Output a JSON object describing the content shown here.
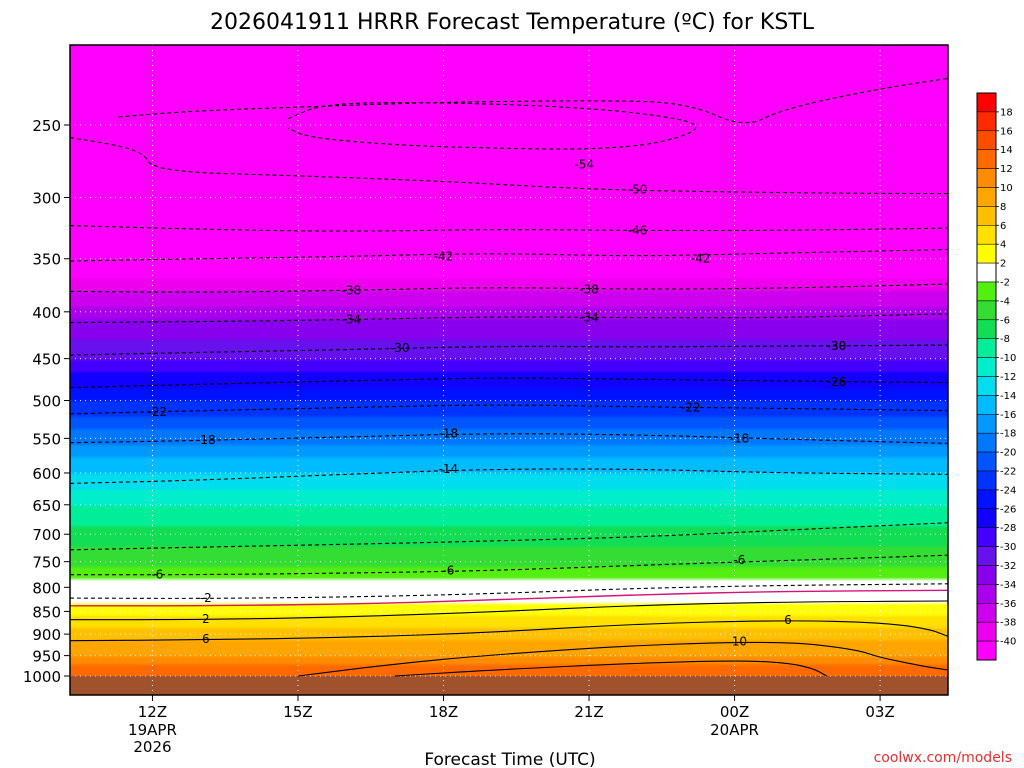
{
  "title": "2026041911 HRRR Forecast Temperature (ºC) for KSTL",
  "credit": "coolwx.com/models",
  "colors": {
    "ground": "#a0522d",
    "background": "#ffffff",
    "pos_contour": "#000000",
    "neg_contour": "#000000",
    "freezing_contour": "#d4147a"
  },
  "chart_data": {
    "type": "heatmap",
    "title": "2026041911 HRRR Forecast Temperature (ºC) for KSTL",
    "xlabel": "Forecast Time (UTC)",
    "ylabel": "",
    "y_scale": "log-pressure",
    "y_range_hpa": [
      1000,
      200
    ],
    "x_range_hours": [
      -1.7,
      16.4
    ],
    "x_ticks": [
      {
        "label": "12Z",
        "sub": [
          "19APR",
          "2026"
        ],
        "hour": 0
      },
      {
        "label": "15Z",
        "sub": [],
        "hour": 3
      },
      {
        "label": "18Z",
        "sub": [],
        "hour": 6
      },
      {
        "label": "21Z",
        "sub": [],
        "hour": 9
      },
      {
        "label": "00Z",
        "sub": [
          "20APR"
        ],
        "hour": 12
      },
      {
        "label": "03Z",
        "sub": [],
        "hour": 15
      }
    ],
    "y_ticks": [
      250,
      300,
      350,
      400,
      450,
      500,
      550,
      600,
      650,
      700,
      750,
      800,
      850,
      900,
      950,
      1000
    ],
    "grid": true,
    "colorbar": {
      "levels": [
        18,
        16,
        14,
        12,
        10,
        8,
        6,
        4,
        2,
        -2,
        -4,
        -6,
        -8,
        -10,
        -12,
        -14,
        -16,
        -18,
        -20,
        -22,
        -24,
        -26,
        -28,
        -30,
        -32,
        -34,
        -36,
        -38,
        -40
      ],
      "colors": [
        "#ff0000",
        "#ff2a00",
        "#ff4d00",
        "#ff6a00",
        "#ff8c00",
        "#ffa500",
        "#ffc000",
        "#ffe000",
        "#ffff00",
        "#ffffff",
        "#55ee11",
        "#33dd33",
        "#11dd55",
        "#00ee99",
        "#00eecc",
        "#00ddee",
        "#00bbff",
        "#0099ff",
        "#0077ff",
        "#0055ff",
        "#0033ff",
        "#0011ff",
        "#1100ff",
        "#4400ff",
        "#6611ee",
        "#8800ee",
        "#aa00ee",
        "#cc00ee",
        "#ee00ee",
        "#ff00ff"
      ]
    },
    "temperature_profile": [
      {
        "p": 200,
        "t": -58
      },
      {
        "p": 250,
        "t": -56
      },
      {
        "p": 300,
        "t": -50
      },
      {
        "p": 350,
        "t": -43
      },
      {
        "p": 400,
        "t": -35
      },
      {
        "p": 450,
        "t": -30
      },
      {
        "p": 500,
        "t": -24
      },
      {
        "p": 550,
        "t": -19
      },
      {
        "p": 600,
        "t": -14
      },
      {
        "p": 650,
        "t": -10
      },
      {
        "p": 700,
        "t": -7
      },
      {
        "p": 750,
        "t": -5
      },
      {
        "p": 800,
        "t": -1
      },
      {
        "p": 850,
        "t": 3
      },
      {
        "p": 900,
        "t": 7
      },
      {
        "p": 950,
        "t": 10
      },
      {
        "p": 1000,
        "t": 14
      }
    ],
    "contours": [
      {
        "value": -54,
        "style": "dashed",
        "points": [
          [
            -0.7,
            245
          ],
          [
            0.5,
            242
          ],
          [
            2,
            240
          ],
          [
            4,
            238
          ],
          [
            6,
            236
          ],
          [
            9,
            235
          ],
          [
            11,
            236
          ],
          [
            12.2,
            252
          ],
          [
            13,
            240
          ],
          [
            15,
            228
          ],
          [
            17,
            220
          ]
        ]
      },
      {
        "value": -54,
        "style": "dashed",
        "points": [
          [
            2.8,
            246
          ],
          [
            3.5,
            237
          ],
          [
            5.5,
            236
          ],
          [
            8,
            238
          ],
          [
            10,
            242
          ],
          [
            11.5,
            250
          ],
          [
            10.5,
            262
          ],
          [
            9,
            266
          ],
          [
            7,
            265
          ],
          [
            5,
            263
          ],
          [
            3.2,
            258
          ],
          [
            2.8,
            252
          ]
        ]
      },
      {
        "value": -50,
        "style": "dashed",
        "points": [
          [
            -1.7,
            258
          ],
          [
            -0.2,
            266
          ],
          [
            0,
            281
          ],
          [
            3,
            284
          ],
          [
            6,
            288
          ],
          [
            9,
            294
          ],
          [
            12,
            296
          ],
          [
            15,
            297
          ],
          [
            16.4,
            297
          ]
        ]
      },
      {
        "value": -46,
        "style": "dashed",
        "points": [
          [
            -1.7,
            322
          ],
          [
            1,
            325
          ],
          [
            4,
            327
          ],
          [
            7,
            325
          ],
          [
            10,
            326
          ],
          [
            13,
            326
          ],
          [
            16.4,
            324
          ]
        ]
      },
      {
        "value": -42,
        "style": "dashed",
        "points": [
          [
            -1.7,
            352
          ],
          [
            1,
            350
          ],
          [
            4,
            348
          ],
          [
            7,
            345
          ],
          [
            10,
            348
          ],
          [
            13,
            345
          ],
          [
            16.4,
            342
          ]
        ]
      },
      {
        "value": -38,
        "style": "dashed",
        "points": [
          [
            -1.7,
            380
          ],
          [
            1,
            381
          ],
          [
            4,
            379
          ],
          [
            7,
            376
          ],
          [
            10,
            378
          ],
          [
            13,
            377
          ],
          [
            16.4,
            373
          ]
        ]
      },
      {
        "value": -34,
        "style": "dashed",
        "points": [
          [
            -1.7,
            411
          ],
          [
            1,
            410
          ],
          [
            4,
            408
          ],
          [
            7,
            405
          ],
          [
            10,
            406
          ],
          [
            13,
            406
          ],
          [
            16.4,
            402
          ]
        ]
      },
      {
        "value": -30,
        "style": "dashed",
        "points": [
          [
            -1.7,
            446
          ],
          [
            1,
            443
          ],
          [
            4,
            440
          ],
          [
            7,
            436
          ],
          [
            10,
            437
          ],
          [
            13,
            436
          ],
          [
            16.4,
            435
          ]
        ]
      },
      {
        "value": -26,
        "style": "dashed",
        "points": [
          [
            -1.7,
            484
          ],
          [
            1,
            480
          ],
          [
            4,
            476
          ],
          [
            7,
            472
          ],
          [
            10,
            474
          ],
          [
            13,
            476
          ],
          [
            16.4,
            478
          ]
        ]
      },
      {
        "value": -22,
        "style": "dashed",
        "points": [
          [
            -1.7,
            517
          ],
          [
            1,
            513
          ],
          [
            4,
            509
          ],
          [
            7,
            505
          ],
          [
            10,
            508
          ],
          [
            13,
            510
          ],
          [
            16.4,
            513
          ]
        ]
      },
      {
        "value": -18,
        "style": "dashed",
        "points": [
          [
            -1.7,
            556
          ],
          [
            1,
            553
          ],
          [
            4,
            548
          ],
          [
            7,
            543
          ],
          [
            10,
            545
          ],
          [
            13,
            551
          ],
          [
            16.4,
            557
          ]
        ]
      },
      {
        "value": -14,
        "style": "dashed",
        "points": [
          [
            -1.7,
            616
          ],
          [
            1,
            611
          ],
          [
            4,
            602
          ],
          [
            7,
            594
          ],
          [
            10,
            594
          ],
          [
            13,
            600
          ],
          [
            16.4,
            602
          ]
        ]
      },
      {
        "value": -10,
        "style": "dashed",
        "points": [
          [
            -1.7,
            728
          ],
          [
            1,
            723
          ],
          [
            4,
            718
          ],
          [
            7,
            712
          ],
          [
            10,
            705
          ],
          [
            13,
            693
          ],
          [
            16.4,
            680
          ]
        ]
      },
      {
        "value": -6,
        "style": "dashed",
        "points": [
          [
            -1.7,
            775
          ],
          [
            1,
            775
          ],
          [
            4,
            772
          ],
          [
            7,
            767
          ],
          [
            10,
            757
          ],
          [
            13,
            748
          ],
          [
            16.4,
            738
          ]
        ]
      },
      {
        "value": -2,
        "style": "dashed",
        "points": [
          [
            -1.7,
            822
          ],
          [
            1,
            823
          ],
          [
            4,
            820
          ],
          [
            7,
            813
          ],
          [
            10,
            802
          ],
          [
            13,
            796
          ],
          [
            16.4,
            793
          ]
        ]
      },
      {
        "value": 0,
        "style": "solid-magenta",
        "points": [
          [
            -1.7,
            838
          ],
          [
            1,
            838
          ],
          [
            4,
            835
          ],
          [
            7,
            826
          ],
          [
            10,
            815
          ],
          [
            13,
            808
          ],
          [
            16.4,
            806
          ]
        ]
      },
      {
        "value": 2,
        "style": "solid",
        "points": [
          [
            -1.7,
            868
          ],
          [
            1,
            868
          ],
          [
            4,
            862
          ],
          [
            7,
            851
          ],
          [
            10,
            837
          ],
          [
            13,
            830
          ],
          [
            16.4,
            828
          ]
        ]
      },
      {
        "value": 6,
        "style": "solid",
        "points": [
          [
            -1.7,
            915
          ],
          [
            1,
            913
          ],
          [
            4,
            908
          ],
          [
            7,
            896
          ],
          [
            10,
            877
          ],
          [
            13,
            869
          ],
          [
            15,
            874
          ],
          [
            16,
            888
          ],
          [
            16.4,
            905
          ]
        ]
      },
      {
        "value": 10,
        "style": "solid",
        "points": [
          [
            3,
            1000
          ],
          [
            5,
            970
          ],
          [
            7,
            948
          ],
          [
            10,
            925
          ],
          [
            13,
            916
          ],
          [
            14.5,
            935
          ],
          [
            15,
            955
          ],
          [
            16,
            978
          ],
          [
            16.4,
            985
          ]
        ]
      },
      {
        "value": 14,
        "style": "solid",
        "points": [
          [
            5,
            1000
          ],
          [
            7,
            985
          ],
          [
            10,
            968
          ],
          [
            12,
            962
          ],
          [
            13,
            966
          ],
          [
            13.6,
            980
          ],
          [
            13.9,
            1000
          ]
        ]
      }
    ],
    "contour_labels": [
      {
        "text": "-54",
        "hour": 8.9,
        "p": 276
      },
      {
        "text": "-50",
        "hour": 10.0,
        "p": 294
      },
      {
        "text": "-46",
        "hour": 10.0,
        "p": 326
      },
      {
        "text": "-42",
        "hour": 6.0,
        "p": 348
      },
      {
        "text": "-42",
        "hour": 11.3,
        "p": 350
      },
      {
        "text": "-38",
        "hour": 4.1,
        "p": 379
      },
      {
        "text": "-38",
        "hour": 9.0,
        "p": 378
      },
      {
        "text": "-34",
        "hour": 4.1,
        "p": 408
      },
      {
        "text": "-34",
        "hour": 9.0,
        "p": 406
      },
      {
        "text": "-30",
        "hour": 5.1,
        "p": 438
      },
      {
        "text": "-30",
        "hour": 14.1,
        "p": 436
      },
      {
        "text": "-26",
        "hour": 14.1,
        "p": 477
      },
      {
        "text": "-22",
        "hour": 0.1,
        "p": 515
      },
      {
        "text": "-22",
        "hour": 11.1,
        "p": 509
      },
      {
        "text": "-18",
        "hour": 1.1,
        "p": 552
      },
      {
        "text": "-18",
        "hour": 6.1,
        "p": 543
      },
      {
        "text": "-18",
        "hour": 12.1,
        "p": 550
      },
      {
        "text": "-14",
        "hour": 6.1,
        "p": 594
      },
      {
        "text": "-6",
        "hour": 0.1,
        "p": 775
      },
      {
        "text": "-6",
        "hour": 6.1,
        "p": 767
      },
      {
        "text": "-6",
        "hour": 12.1,
        "p": 747
      },
      {
        "text": "-2",
        "hour": 1.1,
        "p": 822
      },
      {
        "text": "2",
        "hour": 1.1,
        "p": 866
      },
      {
        "text": "6",
        "hour": 1.1,
        "p": 911
      },
      {
        "text": "6",
        "hour": 13.1,
        "p": 869
      },
      {
        "text": "10",
        "hour": 12.1,
        "p": 917
      }
    ]
  }
}
